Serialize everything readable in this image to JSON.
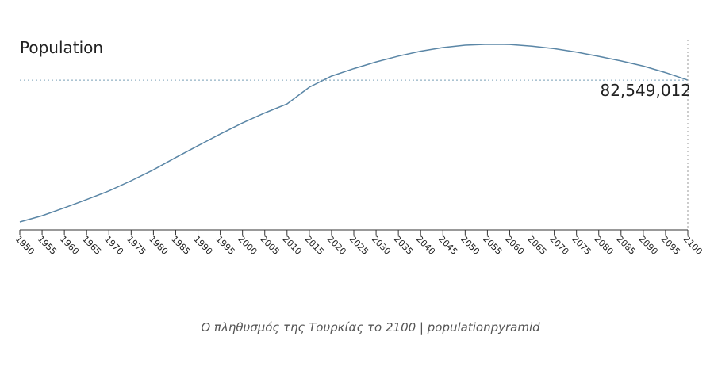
{
  "chart_data": {
    "type": "line",
    "title": "Population",
    "caption": "Ο πληθυσμός της Τουρκίας το 2100 | populationpyramid",
    "x": [
      1950,
      1955,
      1960,
      1965,
      1970,
      1975,
      1980,
      1985,
      1990,
      1995,
      2000,
      2005,
      2010,
      2015,
      2020,
      2025,
      2030,
      2035,
      2040,
      2045,
      2050,
      2055,
      2060,
      2065,
      2070,
      2075,
      2080,
      2085,
      2090,
      2095,
      2100
    ],
    "values": [
      21400000,
      24100000,
      27500000,
      31100000,
      34800000,
      39200000,
      43900000,
      49200000,
      54300000,
      59300000,
      64100000,
      68400000,
      72300000,
      79500000,
      84300000,
      87500000,
      90400000,
      92900000,
      95000000,
      96600000,
      97600000,
      98000000,
      97900000,
      97200000,
      96100000,
      94600000,
      92800000,
      90800000,
      88600000,
      85800000,
      82549012
    ],
    "value_labels": [
      null,
      null,
      null,
      null,
      null,
      null,
      null,
      null,
      null,
      null,
      null,
      null,
      null,
      null,
      null,
      null,
      null,
      null,
      null,
      null,
      null,
      null,
      null,
      null,
      null,
      null,
      null,
      null,
      null,
      null,
      "82,549,012"
    ],
    "color": "#5a86a6",
    "xlim": [
      1950,
      2100
    ],
    "ylim": [
      18000000,
      100000000
    ],
    "xticks": [
      1950,
      1955,
      1960,
      1965,
      1970,
      1975,
      1980,
      1985,
      1990,
      1995,
      2000,
      2005,
      2010,
      2015,
      2020,
      2025,
      2030,
      2035,
      2040,
      2045,
      2050,
      2055,
      2060,
      2065,
      2070,
      2075,
      2080,
      2085,
      2090,
      2095,
      2100
    ]
  }
}
